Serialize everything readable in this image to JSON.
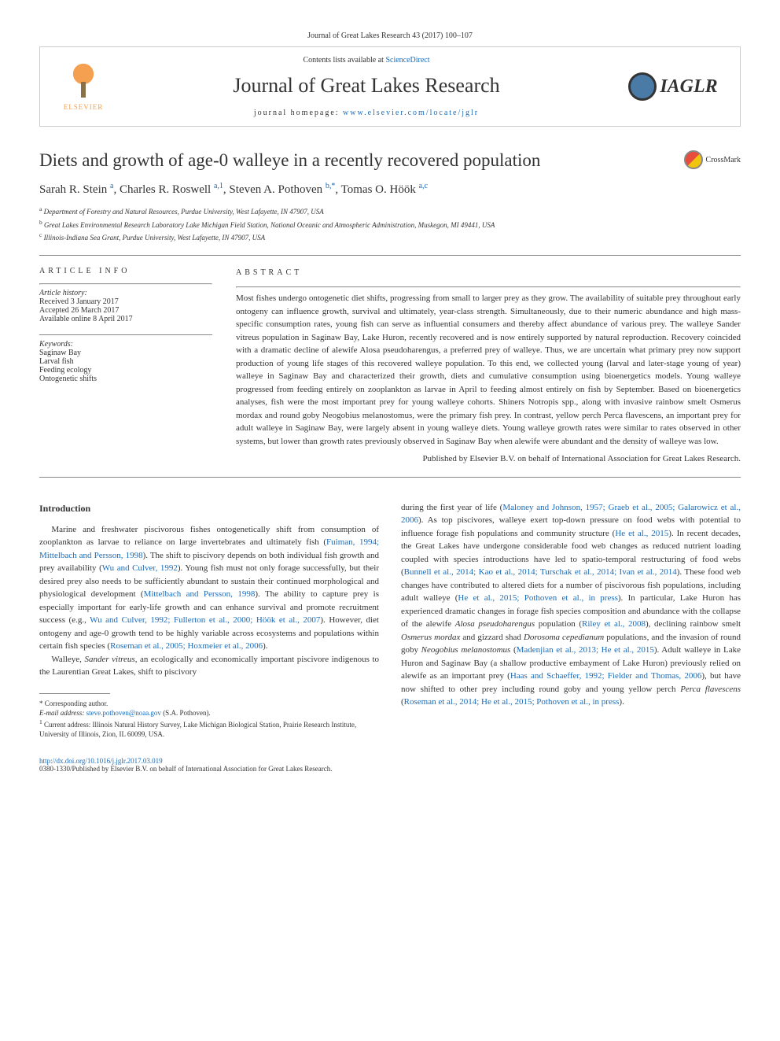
{
  "top_citation": "Journal of Great Lakes Research 43 (2017) 100–107",
  "header": {
    "contents_prefix": "Contents lists available at ",
    "contents_link": "ScienceDirect",
    "journal_name": "Journal of Great Lakes Research",
    "homepage_prefix": "journal homepage: ",
    "homepage_link": "www.elsevier.com/locate/jglr",
    "elsevier_label": "ELSEVIER",
    "iaglr_label": "IAGLR"
  },
  "crossmark": "CrossMark",
  "title": "Diets and growth of age-0 walleye in a recently recovered population",
  "authors_html": "Sarah R. Stein <sup>a</sup>, Charles R. Roswell <sup>a,1</sup>, Steven A. Pothoven <sup>b,*</sup>, Tomas O. Höök <sup>a,c</sup>",
  "affiliations": [
    {
      "sup": "a",
      "text": "Department of Forestry and Natural Resources, Purdue University, West Lafayette, IN 47907, USA"
    },
    {
      "sup": "b",
      "text": "Great Lakes Environmental Research Laboratory Lake Michigan Field Station, National Oceanic and Atmospheric Administration, Muskegon, MI 49441, USA"
    },
    {
      "sup": "c",
      "text": "Illinois-Indiana Sea Grant, Purdue University, West Lafayette, IN 47907, USA"
    }
  ],
  "info": {
    "heading": "article info",
    "history_label": "Article history:",
    "history": [
      "Received 3 January 2017",
      "Accepted 26 March 2017",
      "Available online 8 April 2017"
    ],
    "keywords_label": "Keywords:",
    "keywords": [
      "Saginaw Bay",
      "Larval fish",
      "Feeding ecology",
      "Ontogenetic shifts"
    ]
  },
  "abstract": {
    "heading": "abstract",
    "text": "Most fishes undergo ontogenetic diet shifts, progressing from small to larger prey as they grow. The availability of suitable prey throughout early ontogeny can influence growth, survival and ultimately, year-class strength. Simultaneously, due to their numeric abundance and high mass-specific consumption rates, young fish can serve as influential consumers and thereby affect abundance of various prey. The walleye Sander vitreus population in Saginaw Bay, Lake Huron, recently recovered and is now entirely supported by natural reproduction. Recovery coincided with a dramatic decline of alewife Alosa pseudoharengus, a preferred prey of walleye. Thus, we are uncertain what primary prey now support production of young life stages of this recovered walleye population. To this end, we collected young (larval and later-stage young of year) walleye in Saginaw Bay and characterized their growth, diets and cumulative consumption using bioenergetics models. Young walleye progressed from feeding entirely on zooplankton as larvae in April to feeding almost entirely on fish by September. Based on bioenergetics analyses, fish were the most important prey for young walleye cohorts. Shiners Notropis spp., along with invasive rainbow smelt Osmerus mordax and round goby Neogobius melanostomus, were the primary fish prey. In contrast, yellow perch Perca flavescens, an important prey for adult walleye in Saginaw Bay, were largely absent in young walleye diets. Young walleye growth rates were similar to rates observed in other systems, but lower than growth rates previously observed in Saginaw Bay when alewife were abundant and the density of walleye was low.",
    "credit": "Published by Elsevier B.V. on behalf of International Association for Great Lakes Research."
  },
  "body": {
    "section_heading": "Introduction",
    "left": [
      "Marine and freshwater piscivorous fishes ontogenetically shift from consumption of zooplankton as larvae to reliance on large invertebrates and ultimately fish (<a class='ref' href='#'>Fuiman, 1994; Mittelbach and Persson, 1998</a>). The shift to piscivory depends on both individual fish growth and prey availability (<a class='ref' href='#'>Wu and Culver, 1992</a>). Young fish must not only forage successfully, but their desired prey also needs to be sufficiently abundant to sustain their continued morphological and physiological development (<a class='ref' href='#'>Mittelbach and Persson, 1998</a>). The ability to capture prey is especially important for early-life growth and can enhance survival and promote recruitment success (e.g., <a class='ref' href='#'>Wu and Culver, 1992; Fullerton et al., 2000; Höök et al., 2007</a>). However, diet ontogeny and age-0 growth tend to be highly variable across ecosystems and populations within certain fish species (<a class='ref' href='#'>Roseman et al., 2005; Hoxmeier et al., 2006</a>).",
      "Walleye, <span class='italic'>Sander vitreus</span>, an ecologically and economically important piscivore indigenous to the Laurentian Great Lakes, shift to piscivory"
    ],
    "right": [
      "during the first year of life (<a class='ref' href='#'>Maloney and Johnson, 1957; Graeb et al., 2005; Galarowicz et al., 2006</a>). As top piscivores, walleye exert top-down pressure on food webs with potential to influence forage fish populations and community structure (<a class='ref' href='#'>He et al., 2015</a>). In recent decades, the Great Lakes have undergone considerable food web changes as reduced nutrient loading coupled with species introductions have led to spatio-temporal restructuring of food webs (<a class='ref' href='#'>Bunnell et al., 2014; Kao et al., 2014; Turschak et al., 2014; Ivan et al., 2014</a>). These food web changes have contributed to altered diets for a number of piscivorous fish populations, including adult walleye (<a class='ref' href='#'>He et al., 2015; Pothoven et al., in press</a>). In particular, Lake Huron has experienced dramatic changes in forage fish species composition and abundance with the collapse of the alewife <span class='italic'>Alosa pseudoharengus</span> population (<a class='ref' href='#'>Riley et al., 2008</a>), declining rainbow smelt <span class='italic'>Osmerus mordax</span> and gizzard shad <span class='italic'>Dorosoma cepedianum</span> populations, and the invasion of round goby <span class='italic'>Neogobius melanostomus</span> (<a class='ref' href='#'>Madenjian et al., 2013; He et al., 2015</a>). Adult walleye in Lake Huron and Saginaw Bay (a shallow productive embayment of Lake Huron) previously relied on alewife as an important prey (<a class='ref' href='#'>Haas and Schaeffer, 1992; Fielder and Thomas, 2006</a>), but have now shifted to other prey including round goby and young yellow perch <span class='italic'>Perca flavescens</span> (<a class='ref' href='#'>Roseman et al., 2014; He et al., 2015; Pothoven et al., in press</a>)."
    ]
  },
  "footnotes": {
    "corr_label": "* Corresponding author.",
    "email_label": "E-mail address:",
    "email": "steve.pothoven@noaa.gov",
    "email_attr": " (S.A. Pothoven).",
    "note1_sup": "1",
    "note1": "Current address: Illinois Natural History Survey, Lake Michigan Biological Station, Prairie Research Institute, University of Illinois, Zion, IL 60099, USA."
  },
  "bottom": {
    "doi": "http://dx.doi.org/10.1016/j.jglr.2017.03.019",
    "copyright": "0380-1330/Published by Elsevier B.V. on behalf of International Association for Great Lakes Research."
  },
  "colors": {
    "link": "#1a6bb8",
    "text": "#333333",
    "rule": "#888888"
  }
}
